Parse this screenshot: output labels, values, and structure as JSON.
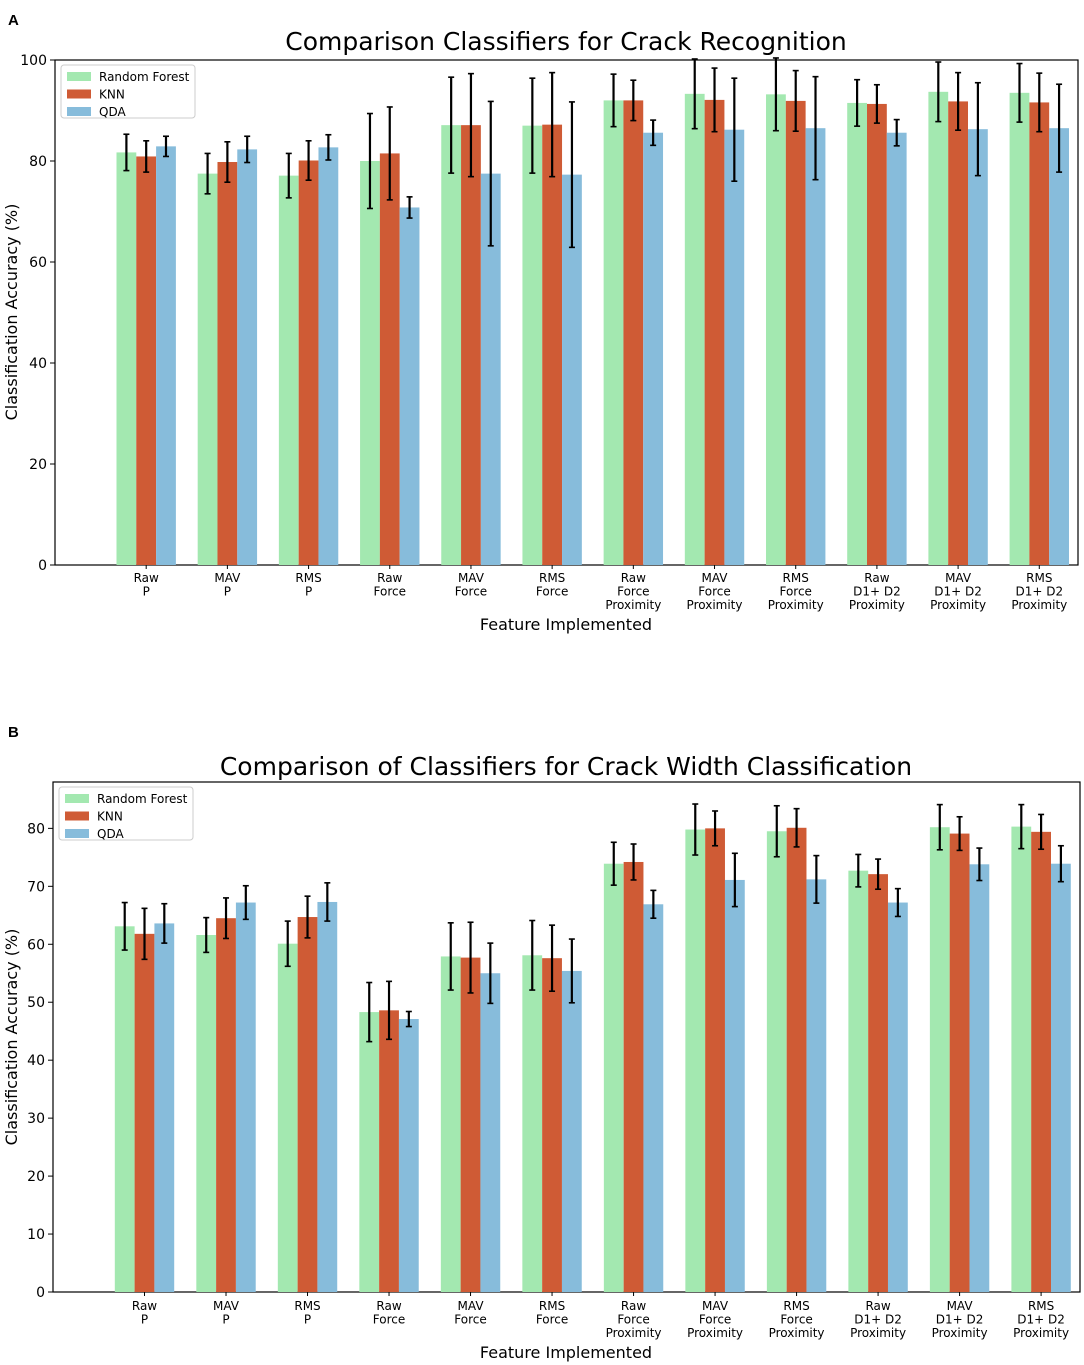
{
  "chart_data": [
    {
      "type": "bar",
      "panel_label": "A",
      "title": "Comparison Classifiers for Crack Recognition",
      "xlabel": "Feature Implemented",
      "ylabel": "Classification Accuracy (%)",
      "ylim": [
        0,
        100
      ],
      "yticks": [
        0,
        20,
        40,
        60,
        80,
        100
      ],
      "legend_position": "top-left",
      "categories": [
        [
          "Raw",
          "P"
        ],
        [
          "MAV",
          "P"
        ],
        [
          "RMS",
          "P"
        ],
        [
          "Raw",
          "Force"
        ],
        [
          "MAV",
          "Force"
        ],
        [
          "RMS",
          "Force"
        ],
        [
          "Raw",
          "Force",
          "Proximity"
        ],
        [
          "MAV",
          "Force",
          "Proximity"
        ],
        [
          "RMS",
          "Force",
          "Proximity"
        ],
        [
          "Raw",
          "D1+ D2",
          "Proximity"
        ],
        [
          "MAV",
          "D1+ D2",
          "Proximity"
        ],
        [
          "RMS",
          "D1+ D2",
          "Proximity"
        ]
      ],
      "series": [
        {
          "name": "Random Forest",
          "color": "#a3e8b0",
          "values": [
            81.7,
            77.5,
            77.1,
            80.0,
            87.1,
            87.0,
            92.0,
            93.3,
            93.2,
            91.5,
            93.7,
            93.5
          ],
          "errors": [
            3.6,
            4.0,
            4.4,
            9.4,
            9.5,
            9.4,
            5.2,
            6.9,
            7.2,
            4.6,
            5.9,
            5.8
          ]
        },
        {
          "name": "KNN",
          "color": "#cf5b35",
          "values": [
            80.9,
            79.8,
            80.1,
            81.5,
            87.1,
            87.2,
            92.0,
            92.1,
            91.9,
            91.3,
            91.8,
            91.6
          ],
          "errors": [
            3.1,
            4.0,
            3.9,
            9.2,
            10.2,
            10.3,
            4.0,
            6.3,
            6.0,
            3.8,
            5.7,
            5.8
          ]
        },
        {
          "name": "QDA",
          "color": "#87bcdb",
          "values": [
            82.9,
            82.3,
            82.7,
            70.8,
            77.5,
            77.3,
            85.6,
            86.2,
            86.5,
            85.6,
            86.3,
            86.5
          ],
          "errors": [
            2.0,
            2.6,
            2.5,
            2.1,
            14.3,
            14.4,
            2.5,
            10.2,
            10.2,
            2.6,
            9.2,
            8.7
          ]
        }
      ]
    },
    {
      "type": "bar",
      "panel_label": "B",
      "title": "Comparison of Classifiers for Crack Width Classification",
      "xlabel": "Feature Implemented",
      "ylabel": "Classification Accuracy (%)",
      "ylim": [
        0,
        88
      ],
      "yticks": [
        0,
        10,
        20,
        30,
        40,
        50,
        60,
        70,
        80
      ],
      "legend_position": "top-left",
      "categories": [
        [
          "Raw",
          "P"
        ],
        [
          "MAV",
          "P"
        ],
        [
          "RMS",
          "P"
        ],
        [
          "Raw",
          "Force"
        ],
        [
          "MAV",
          "Force"
        ],
        [
          "RMS",
          "Force"
        ],
        [
          "Raw",
          "Force",
          "Proximity"
        ],
        [
          "MAV",
          "Force",
          "Proximity"
        ],
        [
          "RMS",
          "Force",
          "Proximity"
        ],
        [
          "Raw",
          "D1+ D2",
          "Proximity"
        ],
        [
          "MAV",
          "D1+ D2",
          "Proximity"
        ],
        [
          "RMS",
          "D1+ D2",
          "Proximity"
        ]
      ],
      "series": [
        {
          "name": "Random Forest",
          "color": "#a3e8b0",
          "values": [
            63.1,
            61.6,
            60.1,
            48.3,
            57.9,
            58.1,
            73.9,
            79.8,
            79.5,
            72.7,
            80.2,
            80.3
          ],
          "errors": [
            4.1,
            3.0,
            3.9,
            5.1,
            5.8,
            6.0,
            3.7,
            4.4,
            4.4,
            2.8,
            3.9,
            3.8
          ]
        },
        {
          "name": "KNN",
          "color": "#cf5b35",
          "values": [
            61.8,
            64.5,
            64.7,
            48.6,
            57.7,
            57.6,
            74.2,
            80.0,
            80.1,
            72.1,
            79.1,
            79.4
          ],
          "errors": [
            4.4,
            3.5,
            3.6,
            5.0,
            6.1,
            5.7,
            3.1,
            3.0,
            3.3,
            2.6,
            2.9,
            3.0
          ]
        },
        {
          "name": "QDA",
          "color": "#87bcdb",
          "values": [
            63.6,
            67.2,
            67.3,
            47.1,
            55.0,
            55.4,
            66.9,
            71.1,
            71.2,
            67.2,
            73.8,
            73.9
          ],
          "errors": [
            3.4,
            2.9,
            3.3,
            1.3,
            5.2,
            5.5,
            2.4,
            4.6,
            4.1,
            2.4,
            2.8,
            3.1
          ]
        }
      ]
    }
  ]
}
